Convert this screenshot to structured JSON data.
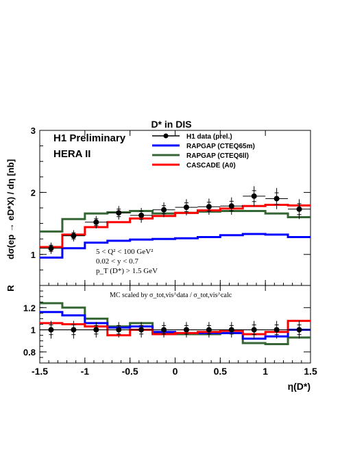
{
  "chart_data": {
    "type": "line",
    "title": "D* in DIS",
    "xlabel": "η(D*)",
    "x_tick_labels": [
      "-1.5",
      "-1",
      "-0.5",
      "0",
      "0.5",
      "1",
      "1.5"
    ],
    "x_ticks": [
      -1.5,
      -1,
      -0.5,
      0,
      0.5,
      1,
      1.5
    ],
    "xlim": [
      -1.5,
      1.5
    ],
    "bin_edges": [
      -1.5,
      -1.25,
      -1.0,
      -0.75,
      -0.5,
      -0.25,
      0.0,
      0.25,
      0.5,
      0.75,
      1.0,
      1.25,
      1.5
    ],
    "bin_centers": [
      -1.375,
      -1.125,
      -0.875,
      -0.625,
      -0.375,
      -0.125,
      0.125,
      0.375,
      0.625,
      0.875,
      1.125,
      1.375
    ],
    "annotations": {
      "preliminary": "H1 Preliminary",
      "dataset": "HERA II",
      "cut_q2": "5 < Q² < 100 GeV²",
      "cut_y": "0.02 < y < 0.7",
      "cut_pt": "p_T (D*) > 1.5 GeV",
      "ratio_note": "MC scaled by σ_tot,vis^data / σ_tot,vis^calc"
    },
    "colors": {
      "rapgap_cteq65m": "#0000ff",
      "rapgap_cteq6ll": "#336633",
      "cascade": "#ff0000",
      "data": "#000000"
    },
    "top": {
      "ylabel": "dσ(ep → eD*X) / dη [nb]",
      "ylim": [
        0.5,
        3.0
      ],
      "y_ticks": [
        1,
        2,
        3
      ],
      "y_tick_labels": [
        "1",
        "2",
        "3"
      ],
      "series": [
        {
          "name": "H1 data (prel.)",
          "kind": "points",
          "values": [
            1.1,
            1.3,
            1.52,
            1.67,
            1.63,
            1.72,
            1.76,
            1.77,
            1.78,
            1.94,
            1.9,
            1.73
          ],
          "errors": [
            0.09,
            0.09,
            0.1,
            0.11,
            0.12,
            0.12,
            0.13,
            0.13,
            0.14,
            0.16,
            0.17,
            0.16
          ]
        },
        {
          "name": "RAPGAP (CTEQ65m)",
          "kind": "hist",
          "values": [
            0.95,
            1.1,
            1.19,
            1.22,
            1.24,
            1.25,
            1.26,
            1.28,
            1.31,
            1.33,
            1.32,
            1.28
          ]
        },
        {
          "name": "RAPGAP (CTEQ6ll)",
          "kind": "hist",
          "values": [
            1.37,
            1.57,
            1.66,
            1.68,
            1.7,
            1.66,
            1.67,
            1.69,
            1.7,
            1.7,
            1.66,
            1.6
          ]
        },
        {
          "name": "CASCADE (A0)",
          "kind": "hist",
          "values": [
            1.12,
            1.32,
            1.44,
            1.52,
            1.58,
            1.62,
            1.67,
            1.71,
            1.74,
            1.78,
            1.8,
            1.79
          ]
        }
      ]
    },
    "bottom": {
      "ylabel": "R",
      "ylim": [
        0.7,
        1.4
      ],
      "y_ticks": [
        0.8,
        1.0,
        1.2
      ],
      "y_tick_labels": [
        "0.8",
        "1",
        "1.2"
      ],
      "reference_line": 1.0,
      "series": [
        {
          "name": "H1 data (prel.)",
          "kind": "points",
          "values": [
            1.0,
            1.0,
            1.0,
            1.0,
            1.0,
            1.0,
            1.0,
            1.0,
            1.0,
            1.0,
            1.0,
            1.0
          ],
          "errors": [
            0.08,
            0.08,
            0.07,
            0.07,
            0.07,
            0.07,
            0.07,
            0.07,
            0.07,
            0.08,
            0.08,
            0.08
          ]
        },
        {
          "name": "RAPGAP (CTEQ65m)",
          "kind": "hist",
          "values": [
            1.16,
            1.13,
            1.06,
            1.02,
            1.03,
            0.98,
            0.97,
            0.97,
            0.97,
            0.92,
            0.94,
            1.0
          ]
        },
        {
          "name": "RAPGAP (CTEQ6ll)",
          "kind": "hist",
          "values": [
            1.24,
            1.2,
            1.1,
            1.03,
            1.06,
            0.97,
            0.96,
            0.96,
            0.97,
            0.88,
            0.87,
            0.93
          ]
        },
        {
          "name": "CASCADE (A0)",
          "kind": "hist",
          "values": [
            1.06,
            1.05,
            1.03,
            0.95,
            1.0,
            0.96,
            0.97,
            0.98,
            0.99,
            0.96,
            0.98,
            1.08
          ]
        }
      ]
    }
  }
}
